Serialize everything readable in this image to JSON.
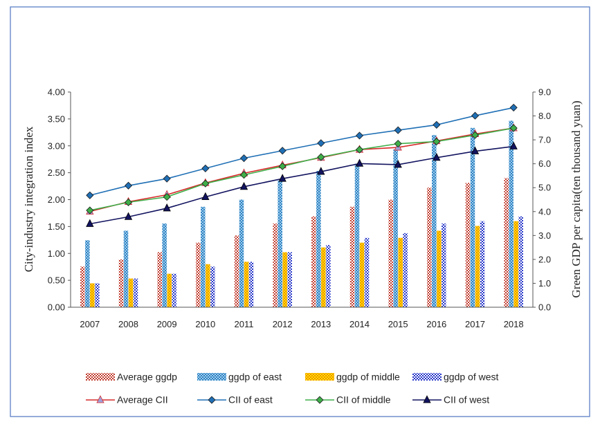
{
  "chart_data": {
    "type": "bar+line",
    "categories": [
      "2007",
      "2008",
      "2009",
      "2010",
      "2011",
      "2012",
      "2013",
      "2014",
      "2015",
      "2016",
      "2017",
      "2018"
    ],
    "y_left": {
      "label": "City-industry integration index",
      "range": [
        0,
        4
      ],
      "ticks": [
        "0.00",
        "0.50",
        "1.00",
        "1.50",
        "2.00",
        "2.50",
        "3.00",
        "3.50",
        "4.00"
      ]
    },
    "y_right": {
      "label": "Green GDP per capita(ten thousand yuan)",
      "range": [
        0,
        9
      ],
      "ticks": [
        "0.0",
        "1.0",
        "2.0",
        "3.0",
        "4.0",
        "5.0",
        "6.0",
        "7.0",
        "8.0",
        "9.0"
      ]
    },
    "bar_series": [
      {
        "name": "Average ggdp",
        "axis": "right",
        "color": "#c0392b",
        "values": [
          1.7,
          2.0,
          2.3,
          2.7,
          3.0,
          3.5,
          3.8,
          4.2,
          4.5,
          5.0,
          5.2,
          5.4
        ]
      },
      {
        "name": "ggdp of east",
        "axis": "right",
        "color": "#3a88c8",
        "values": [
          2.8,
          3.2,
          3.5,
          4.2,
          4.5,
          5.3,
          5.7,
          6.0,
          6.6,
          7.2,
          7.5,
          7.8
        ]
      },
      {
        "name": "ggdp of middle",
        "axis": "right",
        "color": "#f5c400",
        "values": [
          1.0,
          1.2,
          1.4,
          1.8,
          1.9,
          2.3,
          2.5,
          2.7,
          2.9,
          3.2,
          3.4,
          3.6
        ]
      },
      {
        "name": "ggdp of west",
        "axis": "right",
        "color": "#2333c8",
        "values": [
          1.0,
          1.2,
          1.4,
          1.7,
          1.9,
          2.3,
          2.6,
          2.9,
          3.1,
          3.5,
          3.6,
          3.8
        ]
      }
    ],
    "line_series": [
      {
        "name": "Average CII",
        "axis": "left",
        "color": "#d62828",
        "marker": "triangle",
        "marker_color": "#a0a0d8",
        "values": [
          1.78,
          1.96,
          2.09,
          2.31,
          2.49,
          2.64,
          2.78,
          2.93,
          2.97,
          3.09,
          3.22,
          3.33
        ]
      },
      {
        "name": "CII of east",
        "axis": "left",
        "color": "#1f6fb5",
        "marker": "diamond",
        "marker_color": "#1f6fb5",
        "values": [
          2.08,
          2.26,
          2.39,
          2.58,
          2.77,
          2.91,
          3.05,
          3.19,
          3.29,
          3.39,
          3.56,
          3.71
        ]
      },
      {
        "name": "CII of middle",
        "axis": "left",
        "color": "#3fae49",
        "marker": "diamond",
        "marker_color": "#3fae49",
        "values": [
          1.8,
          1.95,
          2.05,
          2.3,
          2.46,
          2.62,
          2.79,
          2.93,
          3.04,
          3.08,
          3.2,
          3.33
        ]
      },
      {
        "name": "CII of west",
        "axis": "left",
        "color": "#12135f",
        "marker": "triangle",
        "marker_color": "#12135f",
        "values": [
          1.55,
          1.68,
          1.84,
          2.05,
          2.24,
          2.39,
          2.52,
          2.67,
          2.65,
          2.78,
          2.9,
          2.99
        ]
      }
    ],
    "grid": false,
    "legend_position": "bottom",
    "title": ""
  }
}
